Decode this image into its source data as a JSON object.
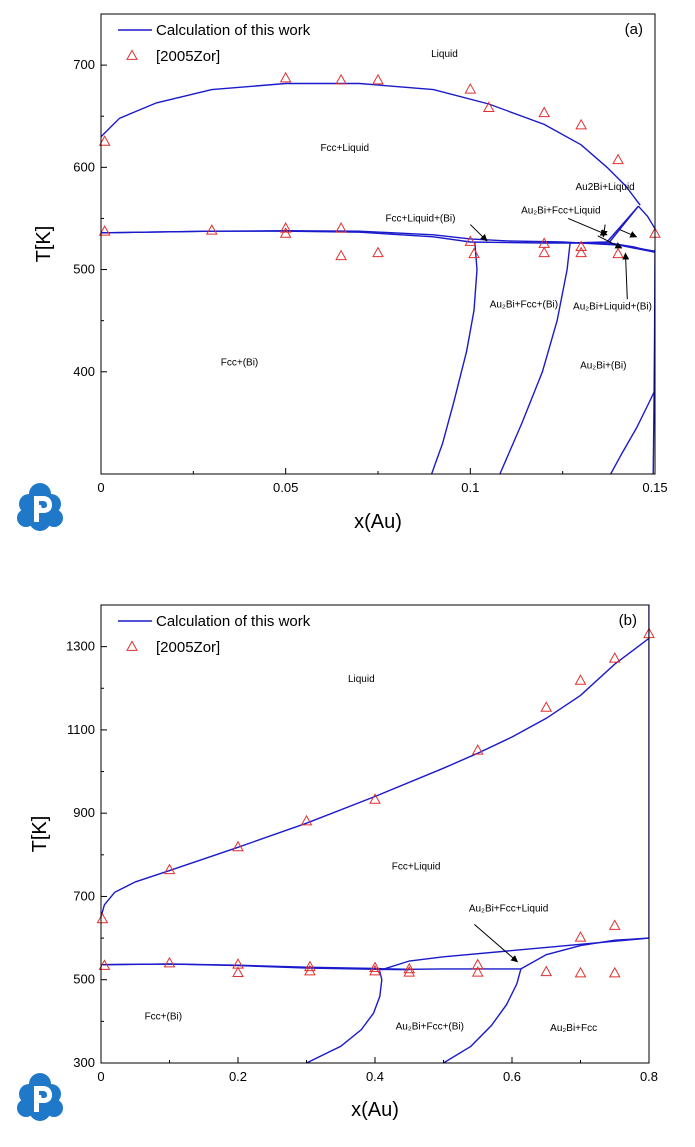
{
  "chart_data": [
    {
      "type": "line",
      "panel_label": "(a)",
      "xlabel": "x(Au)",
      "ylabel": "T[K]",
      "xlim": [
        0,
        0.15
      ],
      "ylim": [
        300,
        750
      ],
      "xticks": [
        0,
        0.05,
        0.1,
        0.15
      ],
      "xtick_labels": [
        "0",
        "0.05",
        "0.1",
        "0.15"
      ],
      "yticks": [
        400,
        500,
        600,
        700
      ],
      "ytick_labels": [
        "400",
        "500",
        "600",
        "700"
      ],
      "legend": {
        "placement": "top-left",
        "entries": [
          "Calculation of this work",
          "[2005Zor]"
        ]
      },
      "line_color": "#1a1acc",
      "marker_color": "#e03030",
      "calc_lines": [
        [
          [
            0,
            630
          ],
          [
            0.005,
            648
          ],
          [
            0.015,
            663
          ],
          [
            0.03,
            676
          ],
          [
            0.05,
            682
          ],
          [
            0.07,
            682
          ],
          [
            0.09,
            676
          ],
          [
            0.105,
            662
          ],
          [
            0.12,
            642
          ],
          [
            0.13,
            622
          ],
          [
            0.137,
            600
          ],
          [
            0.142,
            582
          ],
          [
            0.146,
            563
          ]
        ],
        [
          [
            0,
            536
          ],
          [
            0.03,
            537.5
          ],
          [
            0.05,
            538
          ],
          [
            0.07,
            537.5
          ],
          [
            0.09,
            534
          ],
          [
            0.1,
            530
          ],
          [
            0.11,
            528
          ],
          [
            0.125,
            527
          ],
          [
            0.14,
            524
          ],
          [
            0.15,
            517
          ]
        ],
        [
          [
            0,
            536
          ],
          [
            0.03,
            537.5
          ],
          [
            0.05,
            537.5
          ],
          [
            0.07,
            536.5
          ],
          [
            0.09,
            532
          ],
          [
            0.1,
            527
          ],
          [
            0.12,
            526
          ],
          [
            0.127,
            526
          ]
        ],
        [
          [
            0.1012,
            527
          ],
          [
            0.1018,
            500
          ],
          [
            0.101,
            460
          ],
          [
            0.099,
            420
          ],
          [
            0.0955,
            370
          ],
          [
            0.0925,
            330
          ],
          [
            0.0895,
            300
          ]
        ],
        [
          [
            0.127,
            526
          ],
          [
            0.1262,
            500
          ],
          [
            0.1235,
            450
          ],
          [
            0.1195,
            400
          ],
          [
            0.114,
            350
          ],
          [
            0.108,
            300
          ]
        ],
        [
          [
            0.127,
            526
          ],
          [
            0.137,
            527
          ],
          [
            0.1455,
            562
          ]
        ],
        [
          [
            0.127,
            526
          ],
          [
            0.1375,
            526
          ],
          [
            0.1455,
            562
          ]
        ],
        [
          [
            0.1455,
            562
          ],
          [
            0.148,
            552
          ],
          [
            0.15,
            540
          ]
        ],
        [
          [
            0.1375,
            526
          ],
          [
            0.1445,
            522
          ],
          [
            0.15,
            517
          ]
        ],
        [
          [
            0.1375,
            526
          ],
          [
            0.15,
            518
          ]
        ],
        [
          [
            0.138,
            300
          ],
          [
            0.141,
            320
          ],
          [
            0.145,
            345
          ],
          [
            0.148,
            367
          ],
          [
            0.15,
            382
          ]
        ],
        [
          [
            0.1495,
            300
          ],
          [
            0.1497,
            360
          ],
          [
            0.1499,
            440
          ],
          [
            0.15,
            520
          ]
        ]
      ],
      "experiments": [
        [
          0.001,
          625
        ],
        [
          0.001,
          537
        ],
        [
          0.03,
          538
        ],
        [
          0.05,
          540
        ],
        [
          0.05,
          535
        ],
        [
          0.05,
          687
        ],
        [
          0.065,
          685
        ],
        [
          0.065,
          540
        ],
        [
          0.065,
          513
        ],
        [
          0.075,
          685
        ],
        [
          0.075,
          516
        ],
        [
          0.1,
          676
        ],
        [
          0.1,
          527
        ],
        [
          0.101,
          515
        ],
        [
          0.105,
          658
        ],
        [
          0.12,
          653
        ],
        [
          0.12,
          525
        ],
        [
          0.12,
          516
        ],
        [
          0.13,
          641
        ],
        [
          0.13,
          522
        ],
        [
          0.13,
          516
        ],
        [
          0.14,
          607
        ],
        [
          0.14,
          515
        ],
        [
          0.15,
          535
        ]
      ],
      "region_labels": [
        {
          "text": "Liquid",
          "x": 0.093,
          "y": 708
        },
        {
          "text": "Fcc+Liquid",
          "x": 0.066,
          "y": 616
        },
        {
          "text": "Au2Bi+Liquid",
          "x": 0.1365,
          "y": 578
        },
        {
          "text": "Au₂Bi+Fcc+Liquid",
          "x": 0.1245,
          "y": 555
        },
        {
          "text": "Fcc+Liquid+(Bi)",
          "x": 0.0865,
          "y": 547
        },
        {
          "text": "Au₂Bi+Fcc+(Bi)",
          "x": 0.1145,
          "y": 463
        },
        {
          "text": "Au₂Bi+Liquid+(Bi)",
          "x": 0.1385,
          "y": 461
        },
        {
          "text": "Fcc+(Bi)",
          "x": 0.0375,
          "y": 406
        },
        {
          "text": "Au₂Bi+(Bi)",
          "x": 0.136,
          "y": 403
        }
      ],
      "arrows": [
        [
          [
            0.1,
            544
          ],
          [
            0.1045,
            528
          ]
        ],
        [
          [
            0.1265,
            550
          ],
          [
            0.137,
            534
          ]
        ],
        [
          [
            0.1365,
            544
          ],
          [
            0.136,
            532
          ]
        ],
        [
          [
            0.1405,
            539
          ],
          [
            0.145,
            532
          ]
        ],
        [
          [
            0.1345,
            533
          ],
          [
            0.141,
            521
          ]
        ],
        [
          [
            0.1425,
            471
          ],
          [
            0.142,
            516
          ]
        ]
      ]
    },
    {
      "type": "line",
      "panel_label": "(b)",
      "xlabel": "x(Au)",
      "ylabel": "T[K]",
      "xlim": [
        0,
        0.8
      ],
      "ylim": [
        300,
        1400
      ],
      "xticks": [
        0,
        0.2,
        0.4,
        0.6,
        0.8
      ],
      "xtick_labels": [
        "0",
        "0.2",
        "0.4",
        "0.6",
        "0.8"
      ],
      "yticks": [
        300,
        500,
        700,
        900,
        1100,
        1300
      ],
      "ytick_labels": [
        "300",
        "500",
        "700",
        "900",
        "1100",
        "1300"
      ],
      "legend": {
        "placement": "top-left",
        "entries": [
          "Calculation of this work",
          "[2005Zor]"
        ]
      },
      "line_color": "#1a1acc",
      "marker_color": "#e03030",
      "calc_lines": [
        [
          [
            0,
            651
          ],
          [
            0.005,
            680
          ],
          [
            0.02,
            710
          ],
          [
            0.05,
            735
          ],
          [
            0.1,
            762
          ],
          [
            0.2,
            818
          ],
          [
            0.3,
            876
          ],
          [
            0.4,
            940
          ],
          [
            0.5,
            1008
          ],
          [
            0.55,
            1044
          ],
          [
            0.6,
            1083
          ],
          [
            0.65,
            1128
          ],
          [
            0.7,
            1183
          ],
          [
            0.75,
            1258
          ],
          [
            0.8,
            1320
          ]
        ],
        [
          [
            0,
            536
          ],
          [
            0.1,
            538
          ],
          [
            0.2,
            535
          ],
          [
            0.3,
            530
          ],
          [
            0.4,
            527
          ],
          [
            0.45,
            525
          ],
          [
            0.5,
            526
          ],
          [
            0.6,
            526
          ],
          [
            0.613,
            526
          ]
        ],
        [
          [
            0,
            536
          ],
          [
            0.1,
            537.5
          ],
          [
            0.2,
            534
          ],
          [
            0.3,
            528
          ],
          [
            0.4,
            525
          ],
          [
            0.45,
            524
          ]
        ],
        [
          [
            0.41,
            524
          ],
          [
            0.45,
            545
          ],
          [
            0.5,
            555
          ],
          [
            0.6,
            570
          ],
          [
            0.7,
            585
          ],
          [
            0.8,
            600
          ]
        ],
        [
          [
            0.613,
            526
          ],
          [
            0.65,
            560
          ],
          [
            0.7,
            582
          ],
          [
            0.75,
            595
          ],
          [
            0.8,
            600
          ]
        ],
        [
          [
            0.406,
            527
          ],
          [
            0.41,
            500
          ],
          [
            0.407,
            460
          ],
          [
            0.398,
            420
          ],
          [
            0.38,
            380
          ],
          [
            0.35,
            340
          ],
          [
            0.3,
            300
          ]
        ],
        [
          [
            0.613,
            526
          ],
          [
            0.607,
            490
          ],
          [
            0.592,
            440
          ],
          [
            0.57,
            390
          ],
          [
            0.54,
            340
          ],
          [
            0.5,
            300
          ]
        ],
        [
          [
            0.8,
            600
          ],
          [
            0.8,
            1400
          ]
        ]
      ],
      "experiments": [
        [
          0.002,
          645
        ],
        [
          0.005,
          533
        ],
        [
          0.1,
          763
        ],
        [
          0.1,
          539
        ],
        [
          0.2,
          818
        ],
        [
          0.2,
          536
        ],
        [
          0.2,
          516
        ],
        [
          0.3,
          880
        ],
        [
          0.305,
          530
        ],
        [
          0.305,
          520
        ],
        [
          0.4,
          932
        ],
        [
          0.4,
          528
        ],
        [
          0.4,
          520
        ],
        [
          0.45,
          525
        ],
        [
          0.45,
          517
        ],
        [
          0.55,
          1050
        ],
        [
          0.55,
          535
        ],
        [
          0.55,
          517
        ],
        [
          0.65,
          1153
        ],
        [
          0.65,
          518
        ],
        [
          0.7,
          1218
        ],
        [
          0.7,
          601
        ],
        [
          0.7,
          515
        ],
        [
          0.75,
          1271
        ],
        [
          0.75,
          629
        ],
        [
          0.75,
          515
        ],
        [
          0.8,
          1330
        ]
      ],
      "region_labels": [
        {
          "text": "Liquid",
          "x": 0.38,
          "y": 1215
        },
        {
          "text": "Fcc+Liquid",
          "x": 0.46,
          "y": 765
        },
        {
          "text": "Au₂Bi+Fcc+Liquid",
          "x": 0.595,
          "y": 664
        },
        {
          "text": "Fcc+(Bi)",
          "x": 0.091,
          "y": 405
        },
        {
          "text": "Au₂Bi+Fcc+(Bi)",
          "x": 0.48,
          "y": 380
        },
        {
          "text": "Au₂Bi+Fcc",
          "x": 0.69,
          "y": 377
        }
      ],
      "arrows": [
        [
          [
            0.545,
            633
          ],
          [
            0.608,
            543
          ]
        ]
      ]
    }
  ],
  "icons": [
    "logo-p-icon",
    "logo-p-icon"
  ]
}
